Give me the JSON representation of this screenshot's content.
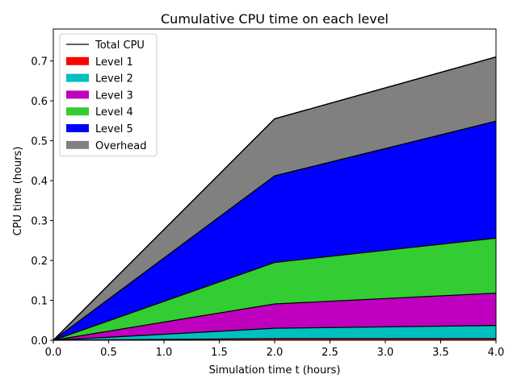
{
  "chart_data": {
    "type": "area",
    "title": "Cumulative CPU time on each level",
    "xlabel": "Simulation time t (hours)",
    "ylabel": "CPU time (hours)",
    "xlim": [
      0,
      4
    ],
    "ylim": [
      0,
      0.78
    ],
    "x": [
      0,
      2,
      4
    ],
    "xticks": [
      0,
      0.5,
      1,
      1.5,
      2,
      2.5,
      3,
      3.5,
      4
    ],
    "xtick_labels": [
      "0.0",
      "0.5",
      "1.0",
      "1.5",
      "2.0",
      "2.5",
      "3.0",
      "3.5",
      "4.0"
    ],
    "yticks": [
      0,
      0.1,
      0.2,
      0.3,
      0.4,
      0.5,
      0.6,
      0.7
    ],
    "ytick_labels": [
      "0.0",
      "0.1",
      "0.2",
      "0.3",
      "0.4",
      "0.5",
      "0.6",
      "0.7"
    ],
    "stacked": true,
    "legend_position": "top-left",
    "grid": false,
    "total": {
      "name": "Total CPU",
      "color": "#000000",
      "values": [
        0,
        0.555,
        0.71
      ]
    },
    "series": [
      {
        "name": "Level 1",
        "color": "#ff0000",
        "values": [
          0,
          0.004,
          0.004
        ]
      },
      {
        "name": "Level 2",
        "color": "#00bfbf",
        "values": [
          0,
          0.026,
          0.033
        ]
      },
      {
        "name": "Level 3",
        "color": "#bf00bf",
        "values": [
          0,
          0.061,
          0.081
        ]
      },
      {
        "name": "Level 4",
        "color": "#33cc33",
        "values": [
          0,
          0.104,
          0.138
        ]
      },
      {
        "name": "Level 5",
        "color": "#0000ff",
        "values": [
          0,
          0.217,
          0.293
        ]
      },
      {
        "name": "Overhead",
        "color": "#808080",
        "values": [
          0,
          0.143,
          0.161
        ]
      }
    ]
  }
}
